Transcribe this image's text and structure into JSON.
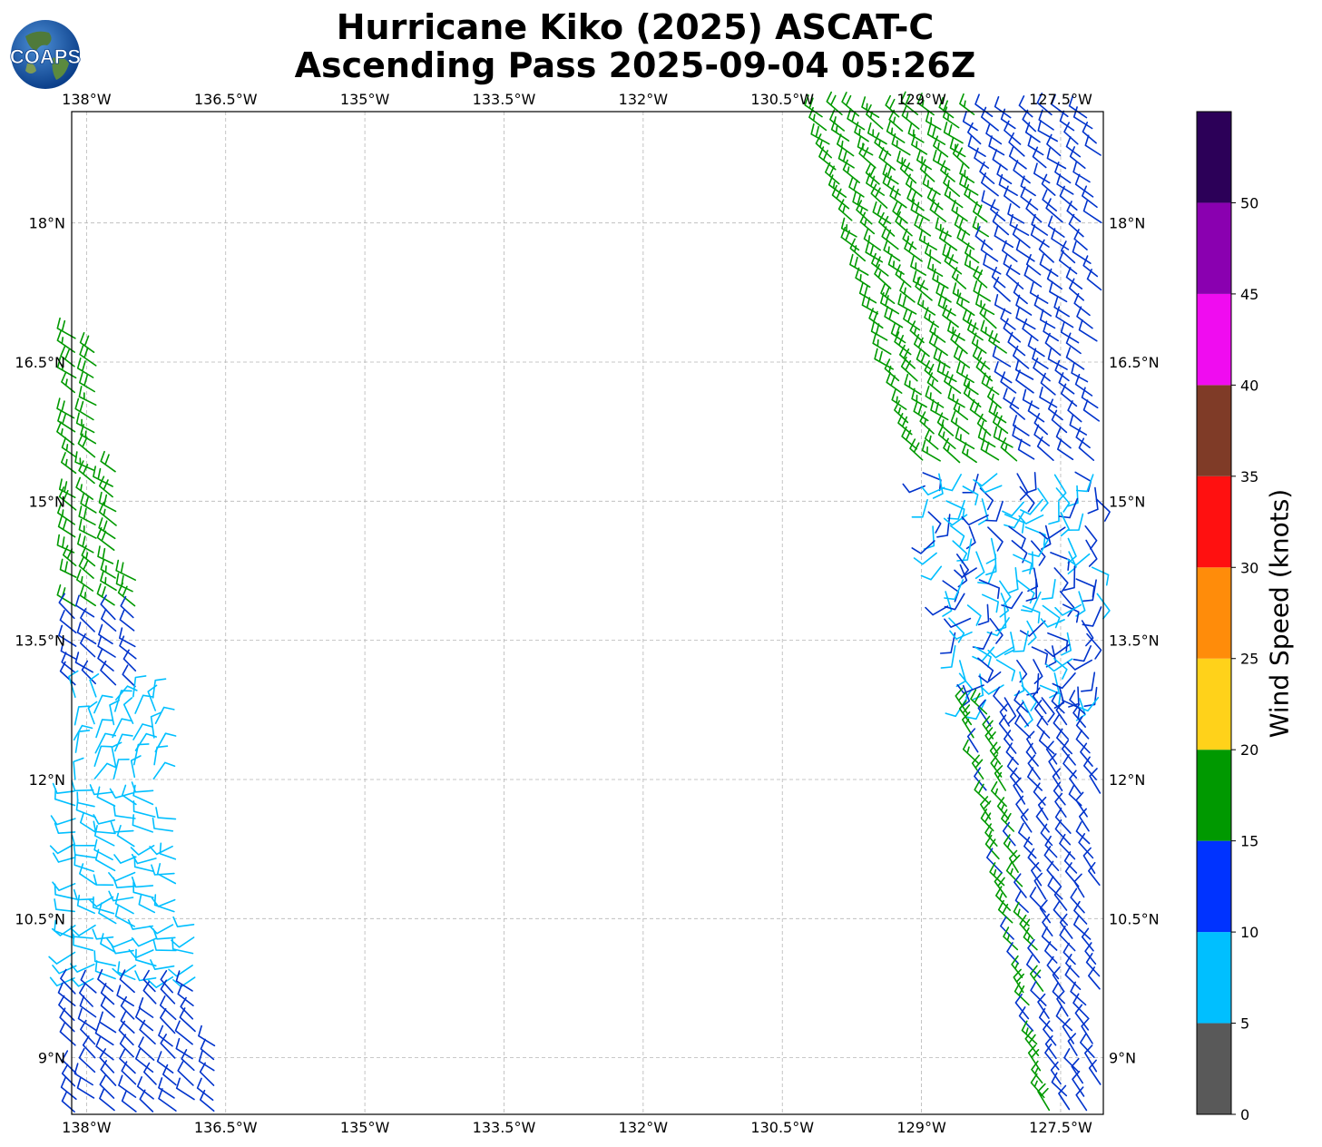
{
  "title": {
    "line1": "Hurricane Kiko (2025) ASCAT-C",
    "line2": "Ascending Pass 2025-09-04 05:26Z"
  },
  "logo": {
    "text": "COAPS",
    "icon": "globe-icon"
  },
  "map": {
    "lon_ticks": [
      "138°W",
      "136.5°W",
      "135°W",
      "133.5°W",
      "132°W",
      "130.5°W",
      "129°W",
      "127.5°W"
    ],
    "lon_values": [
      -138,
      -136.5,
      -135,
      -133.5,
      -132,
      -130.5,
      -129,
      -127.5
    ],
    "lat_ticks": [
      "18°N",
      "16.5°N",
      "15°N",
      "13.5°N",
      "12°N",
      "10.5°N",
      "9°N"
    ],
    "lat_values": [
      18,
      16.5,
      15,
      13.5,
      12,
      10.5,
      9
    ],
    "extent": {
      "lon": [
        -138.16,
        -127.04
      ],
      "lat": [
        8.39,
        19.2
      ]
    },
    "grid": "dashed-light-gray",
    "barb_colors": {
      "5-10": "#00bfff",
      "10-15": "#0033cc",
      "15-20": "#009900"
    }
  },
  "colorbar": {
    "label": "Wind Speed (knots)",
    "tick_labels": [
      "0",
      "5",
      "10",
      "15",
      "20",
      "25",
      "30",
      "35",
      "40",
      "45",
      "50"
    ],
    "tick_values": [
      0,
      5,
      10,
      15,
      20,
      25,
      30,
      35,
      40,
      45,
      50
    ],
    "bands": [
      {
        "from": 0,
        "to": 5,
        "color": "#595959"
      },
      {
        "from": 5,
        "to": 10,
        "color": "#00bfff"
      },
      {
        "from": 10,
        "to": 15,
        "color": "#0033ff"
      },
      {
        "from": 15,
        "to": 20,
        "color": "#009900"
      },
      {
        "from": 20,
        "to": 25,
        "color": "#ffd21a"
      },
      {
        "from": 25,
        "to": 30,
        "color": "#ff8c0a"
      },
      {
        "from": 30,
        "to": 35,
        "color": "#ff1010"
      },
      {
        "from": 35,
        "to": 40,
        "color": "#7f3b27"
      },
      {
        "from": 40,
        "to": 45,
        "color": "#f00cf0"
      },
      {
        "from": 45,
        "to": 50,
        "color": "#8a00b0"
      },
      {
        "from": 50,
        "to": 55,
        "color": "#2c0058"
      }
    ]
  }
}
